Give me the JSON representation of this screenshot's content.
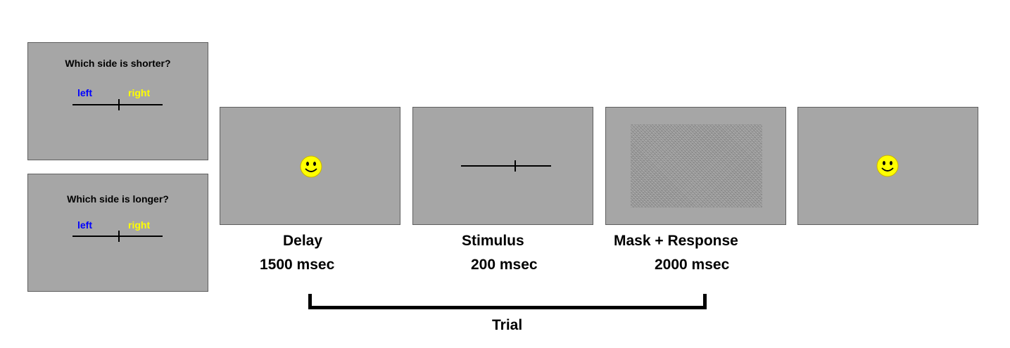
{
  "instruction_panels": [
    {
      "question": "Which side is shorter?",
      "left_label": "left",
      "right_label": "right"
    },
    {
      "question": "Which side is longer?",
      "left_label": "left",
      "right_label": "right"
    }
  ],
  "colors": {
    "panel_bg": "#a6a6a6",
    "left_label": "#0000ff",
    "right_label": "#ffff00",
    "smiley": "#ffff00"
  },
  "sequence": [
    {
      "name": "Delay",
      "duration": "1500 msec",
      "content": "smiley-icon"
    },
    {
      "name": "Stimulus",
      "duration": "200 msec",
      "content": "bisected-line"
    },
    {
      "name": "Mask + Response",
      "duration": "2000 msec",
      "content": "noise-mask"
    },
    {
      "name": "",
      "duration": "",
      "content": "smiley-icon"
    }
  ],
  "trial_label": "Trial"
}
